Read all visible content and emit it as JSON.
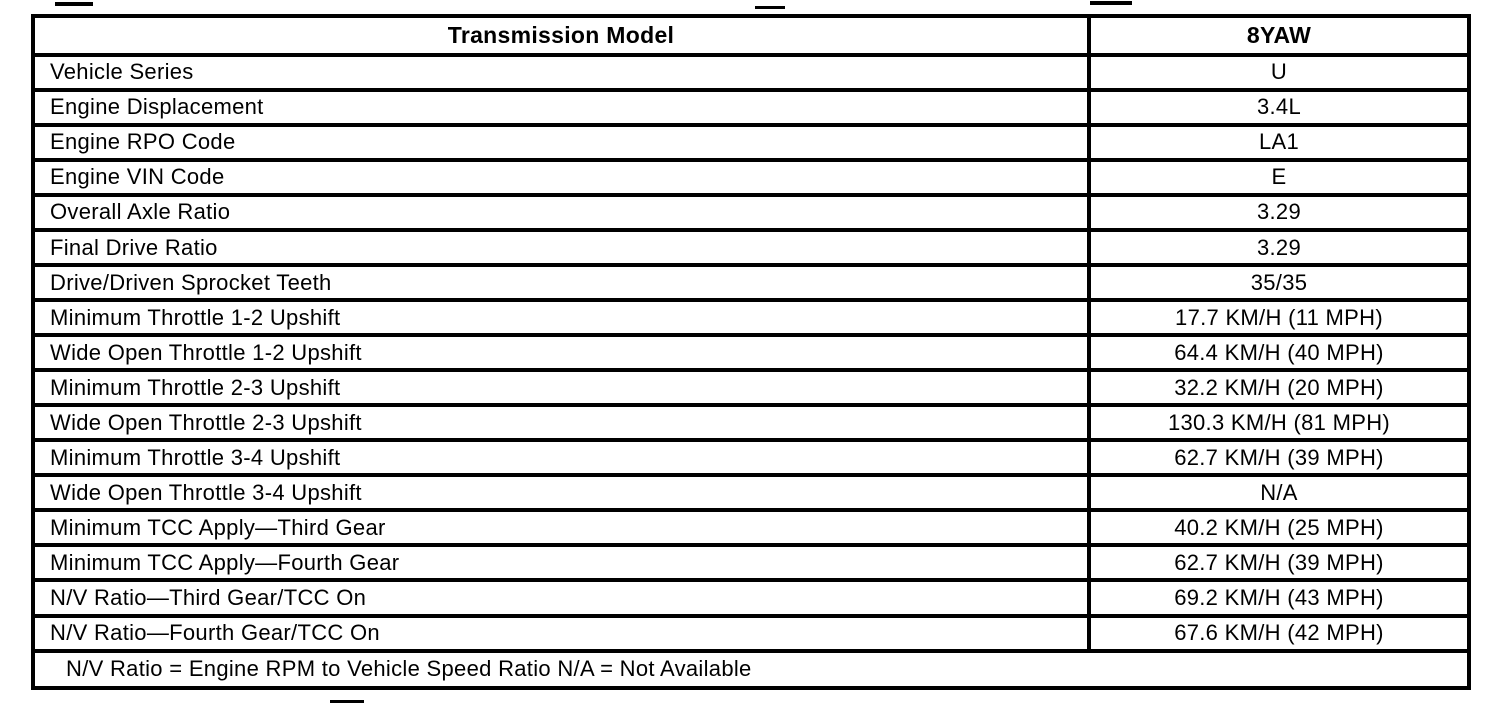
{
  "table": {
    "header": {
      "model_label": "Transmission Model",
      "model_code": "8YAW"
    },
    "rows": [
      {
        "label": "Vehicle Series",
        "value": "U"
      },
      {
        "label": "Engine Displacement",
        "value": "3.4L"
      },
      {
        "label": "Engine RPO Code",
        "value": "LA1"
      },
      {
        "label": "Engine VIN Code",
        "value": "E"
      },
      {
        "label": "Overall Axle Ratio",
        "value": "3.29"
      },
      {
        "label": "Final Drive Ratio",
        "value": "3.29"
      },
      {
        "label": "Drive/Driven Sprocket Teeth",
        "value": "35/35"
      },
      {
        "label": "Minimum Throttle 1-2 Upshift",
        "value": "17.7 KM/H (11 MPH)"
      },
      {
        "label": "Wide Open Throttle 1-2 Upshift",
        "value": "64.4 KM/H (40 MPH)"
      },
      {
        "label": "Minimum Throttle 2-3 Upshift",
        "value": "32.2 KM/H (20 MPH)"
      },
      {
        "label": "Wide Open Throttle 2-3 Upshift",
        "value": "130.3 KM/H (81 MPH)"
      },
      {
        "label": "Minimum Throttle 3-4 Upshift",
        "value": "62.7 KM/H (39 MPH)"
      },
      {
        "label": "Wide Open Throttle 3-4 Upshift",
        "value": "N/A"
      },
      {
        "label": "Minimum TCC Apply—Third Gear",
        "value": "40.2 KM/H (25 MPH)"
      },
      {
        "label": "Minimum TCC Apply—Fourth Gear",
        "value": "62.7 KM/H (39 MPH)"
      },
      {
        "label": "N/V Ratio—Third Gear/TCC On",
        "value": "69.2 KM/H (43 MPH)"
      },
      {
        "label": "N/V Ratio—Fourth Gear/TCC On",
        "value": "67.6 KM/H (42 MPH)"
      }
    ],
    "footnote": "N/V Ratio = Engine RPM to Vehicle Speed Ratio N/A = Not Available"
  },
  "colors": {
    "border": "#000000",
    "background": "#ffffff",
    "text": "#000000"
  }
}
